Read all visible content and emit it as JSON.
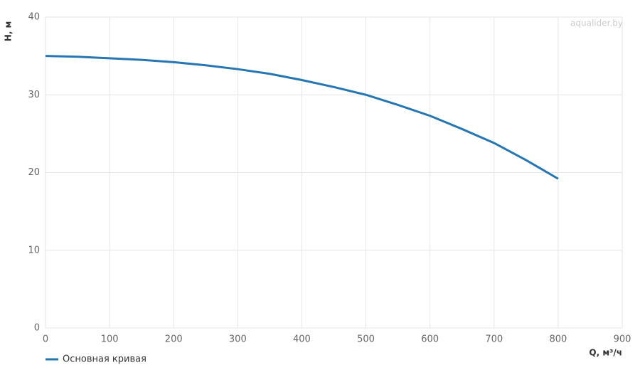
{
  "chart_data": {
    "type": "line",
    "watermark": "aqualider.by",
    "x_label": "Q, м³/ч",
    "y_label": "H, м",
    "x": [
      0,
      50,
      100,
      150,
      200,
      250,
      300,
      350,
      400,
      450,
      500,
      550,
      600,
      650,
      700,
      750,
      800
    ],
    "series": [
      {
        "name": "Основная кривая",
        "color": "#2676b3",
        "values": [
          35.0,
          34.9,
          34.7,
          34.5,
          34.2,
          33.8,
          33.3,
          32.7,
          31.9,
          31.0,
          30.0,
          28.7,
          27.3,
          25.6,
          23.8,
          21.6,
          19.2
        ]
      }
    ],
    "xlim": [
      0,
      900
    ],
    "xticks": [
      0,
      100,
      200,
      300,
      400,
      500,
      600,
      700,
      800,
      900
    ],
    "ylim": [
      0,
      40
    ],
    "yticks": [
      0,
      10,
      20,
      30,
      40
    ],
    "grid": true,
    "legend": "bottom-left"
  }
}
